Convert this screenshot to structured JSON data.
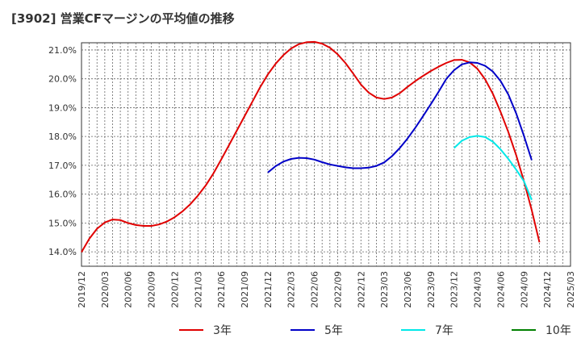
{
  "chart_data": {
    "type": "line",
    "title": "[3902]  営業CFマージンの平均値の推移",
    "xlabel": "",
    "ylabel": "",
    "ylim": [
      13.5,
      21.25
    ],
    "y_ticks": [
      "14.0%",
      "15.0%",
      "16.0%",
      "17.0%",
      "18.0%",
      "19.0%",
      "20.0%",
      "21.0%"
    ],
    "y_tick_values": [
      14,
      15,
      16,
      17,
      18,
      19,
      20,
      21
    ],
    "x_ticks": [
      "2019/12",
      "2020/03",
      "2020/06",
      "2020/09",
      "2020/12",
      "2021/03",
      "2021/06",
      "2021/09",
      "2021/12",
      "2022/03",
      "2022/06",
      "2022/09",
      "2022/12",
      "2023/03",
      "2023/06",
      "2023/09",
      "2023/12",
      "2024/03",
      "2024/06",
      "2024/09",
      "2024/12",
      "2025/03"
    ],
    "grid": true,
    "legend_position": "bottom",
    "series": [
      {
        "name": "3年",
        "color": "#e00000",
        "points": [
          [
            0,
            13.99
          ],
          [
            1,
            14.45
          ],
          [
            2,
            14.8
          ],
          [
            3,
            15.02
          ],
          [
            4,
            15.12
          ],
          [
            5,
            15.1
          ],
          [
            6,
            15.0
          ],
          [
            7,
            14.93
          ],
          [
            8,
            14.9
          ],
          [
            9,
            14.9
          ],
          [
            10,
            14.95
          ],
          [
            11,
            15.05
          ],
          [
            12,
            15.2
          ],
          [
            13,
            15.4
          ],
          [
            14,
            15.65
          ],
          [
            15,
            15.95
          ],
          [
            16,
            16.3
          ],
          [
            17,
            16.72
          ],
          [
            18,
            17.2
          ],
          [
            19,
            17.7
          ],
          [
            20,
            18.2
          ],
          [
            21,
            18.7
          ],
          [
            22,
            19.2
          ],
          [
            23,
            19.7
          ],
          [
            24,
            20.15
          ],
          [
            25,
            20.52
          ],
          [
            26,
            20.82
          ],
          [
            27,
            21.05
          ],
          [
            28,
            21.2
          ],
          [
            29,
            21.27
          ],
          [
            30,
            21.28
          ],
          [
            31,
            21.22
          ],
          [
            32,
            21.08
          ],
          [
            33,
            20.85
          ],
          [
            34,
            20.55
          ],
          [
            35,
            20.18
          ],
          [
            36,
            19.8
          ],
          [
            37,
            19.52
          ],
          [
            38,
            19.35
          ],
          [
            39,
            19.3
          ],
          [
            40,
            19.35
          ],
          [
            41,
            19.5
          ],
          [
            42,
            19.72
          ],
          [
            43,
            19.92
          ],
          [
            44,
            20.1
          ],
          [
            45,
            20.27
          ],
          [
            46,
            20.42
          ],
          [
            47,
            20.55
          ],
          [
            48,
            20.65
          ],
          [
            49,
            20.66
          ],
          [
            50,
            20.57
          ],
          [
            51,
            20.35
          ],
          [
            52,
            19.98
          ],
          [
            53,
            19.48
          ],
          [
            54,
            18.85
          ],
          [
            55,
            18.15
          ],
          [
            56,
            17.35
          ],
          [
            57,
            16.45
          ],
          [
            58,
            15.45
          ],
          [
            59,
            14.33
          ]
        ]
      },
      {
        "name": "5年",
        "color": "#0000c8",
        "points": [
          [
            24,
            16.75
          ],
          [
            25,
            16.97
          ],
          [
            26,
            17.13
          ],
          [
            27,
            17.22
          ],
          [
            28,
            17.26
          ],
          [
            29,
            17.25
          ],
          [
            30,
            17.2
          ],
          [
            31,
            17.11
          ],
          [
            32,
            17.03
          ],
          [
            33,
            16.98
          ],
          [
            34,
            16.93
          ],
          [
            35,
            16.9
          ],
          [
            36,
            16.9
          ],
          [
            37,
            16.92
          ],
          [
            38,
            16.98
          ],
          [
            39,
            17.1
          ],
          [
            40,
            17.32
          ],
          [
            41,
            17.6
          ],
          [
            42,
            17.93
          ],
          [
            43,
            18.3
          ],
          [
            44,
            18.7
          ],
          [
            45,
            19.12
          ],
          [
            46,
            19.55
          ],
          [
            47,
            20.0
          ],
          [
            48,
            20.3
          ],
          [
            49,
            20.5
          ],
          [
            50,
            20.57
          ],
          [
            51,
            20.55
          ],
          [
            52,
            20.45
          ],
          [
            53,
            20.25
          ],
          [
            54,
            19.92
          ],
          [
            55,
            19.45
          ],
          [
            56,
            18.8
          ],
          [
            57,
            18.02
          ],
          [
            58,
            17.18
          ]
        ]
      },
      {
        "name": "7年",
        "color": "#00e8e8",
        "points": [
          [
            48,
            17.6
          ],
          [
            49,
            17.85
          ],
          [
            50,
            17.98
          ],
          [
            51,
            18.02
          ],
          [
            52,
            17.98
          ],
          [
            53,
            17.82
          ],
          [
            54,
            17.55
          ],
          [
            55,
            17.22
          ],
          [
            56,
            16.85
          ],
          [
            57,
            16.45
          ],
          [
            58,
            15.8
          ]
        ]
      },
      {
        "name": "10年",
        "color": "#008000",
        "points": []
      }
    ]
  }
}
